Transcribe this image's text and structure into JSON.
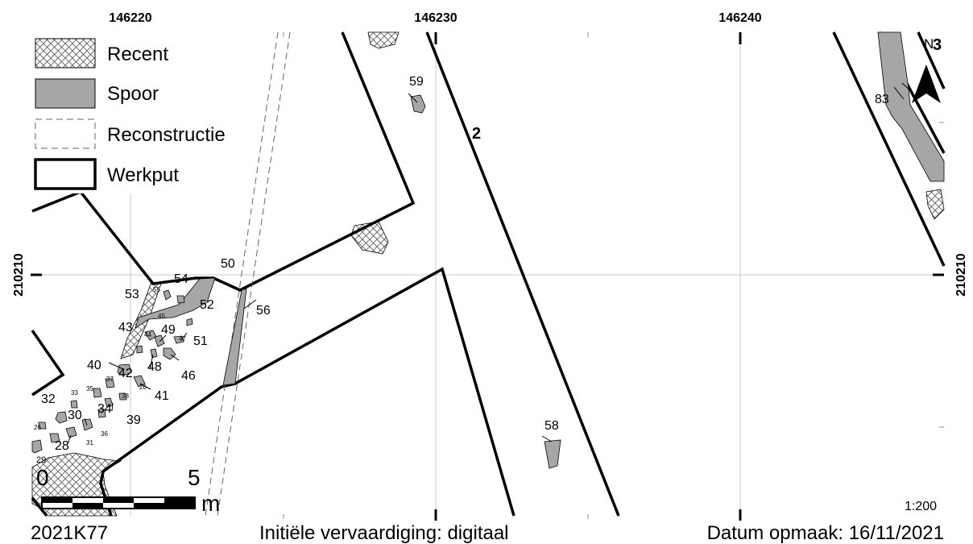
{
  "grid": {
    "x_labels": [
      "146220",
      "146230",
      "146240"
    ],
    "y_label_left": "210210",
    "y_label_right": "210210"
  },
  "legend": {
    "items": [
      {
        "label": "Recent",
        "swatch": "crosshatch"
      },
      {
        "label": "Spoor",
        "swatch": "gray-fill"
      },
      {
        "label": "Reconstructie",
        "swatch": "dashed-outline"
      },
      {
        "label": "Werkput",
        "swatch": "thick-outline"
      }
    ]
  },
  "trench_labels": [
    "2",
    "3"
  ],
  "feature_labels": {
    "f28": "28",
    "f29": "29",
    "f30": "30",
    "f31": "31",
    "f32": "32",
    "f33": "33",
    "f34": "34",
    "f35": "35",
    "f36": "36",
    "f37": "37",
    "f38": "38",
    "f39": "39",
    "f40": "40",
    "f41": "41",
    "f42": "42",
    "f43": "43",
    "f44": "44",
    "f45": "45",
    "f46": "46",
    "f47": "47",
    "f48": "48",
    "f49": "49",
    "f50": "50",
    "f51": "51",
    "f52": "52",
    "f53": "53",
    "f54": "54",
    "f55": "55",
    "f56": "56",
    "f58": "58",
    "f59": "59",
    "f83": "83",
    "f26": "26"
  },
  "scale_bar": {
    "start": "0",
    "end": "5",
    "unit": "m"
  },
  "scale_ratio": "1:200",
  "north_arrow": "N",
  "footer": {
    "project_code": "2021K77",
    "method": "Initiële vervaardiging: digitaal",
    "date": "Datum opmaak: 16/11/2021"
  },
  "colors": {
    "feature_fill": "#a6a6a6",
    "outline": "#000000",
    "grid": "#c8c8c8"
  }
}
